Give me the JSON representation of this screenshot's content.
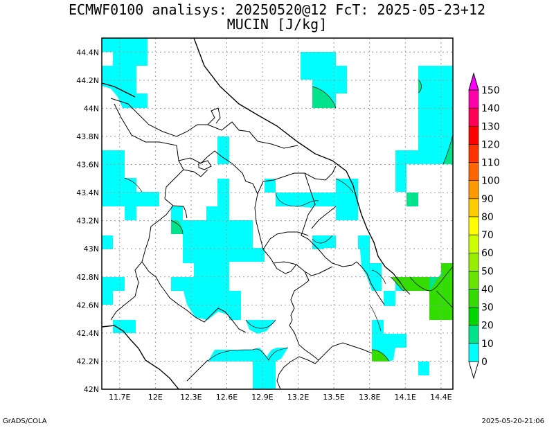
{
  "header": {
    "title_line1": "ECMWF0100 analisys: 20250520@12 FcT: 2025-05-23+12",
    "title_line2": "MUCIN [J/kg]"
  },
  "footer": {
    "left": "GrADS/COLA",
    "right": "2025-05-20-21:06"
  },
  "axes": {
    "x_ticks": [
      "11.7E",
      "12E",
      "12.3E",
      "12.6E",
      "12.9E",
      "13.2E",
      "13.5E",
      "13.8E",
      "14.1E",
      "14.4E"
    ],
    "y_ticks": [
      "44.4N",
      "44.2N",
      "44N",
      "43.8N",
      "43.6N",
      "43.4N",
      "43.2N",
      "43N",
      "42.8N",
      "42.6N",
      "42.4N",
      "42.2N",
      "42N"
    ],
    "lon_range": [
      11.55,
      14.5
    ],
    "lat_range": [
      42.0,
      44.5
    ],
    "grid": true
  },
  "colorbar": {
    "labels": [
      "0",
      "10",
      "20",
      "30",
      "40",
      "50",
      "60",
      "70",
      "80",
      "90",
      "100",
      "110",
      "120",
      "130",
      "140",
      "150"
    ],
    "colors": [
      "#00ffff",
      "#00e38a",
      "#00d500",
      "#33dd00",
      "#66e600",
      "#99ee00",
      "#ccff00",
      "#ffff00",
      "#ffcc00",
      "#ff9900",
      "#ff6600",
      "#ff3300",
      "#ff0000",
      "#ff0055",
      "#ff00aa",
      "#ff00ff"
    ]
  },
  "colors": {
    "cyan": "#00ffff",
    "teal": "#00e38a",
    "green": "#33dd00"
  }
}
